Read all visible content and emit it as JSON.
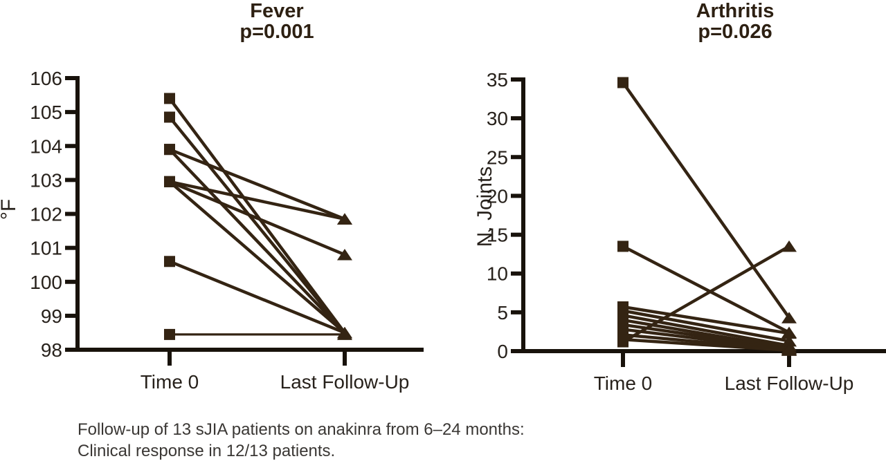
{
  "figure": {
    "caption_line1": "Follow-up of 13 sJIA patients on anakinra from 6–24 months:",
    "caption_line2": "Clinical response in 12/13 patients."
  },
  "colors": {
    "data": "#342413",
    "axis": "#18120b",
    "tick_label": "#27211b",
    "title": "#2d2012",
    "caption": "#3a3734"
  },
  "chart_data": [
    {
      "type": "line",
      "title": "Fever",
      "subtitle": "p=0.001",
      "ylabel": "°F",
      "xlabel": "",
      "categories": [
        "Time 0",
        "Last Follow-Up"
      ],
      "ylim": [
        98,
        106
      ],
      "yticks": [
        106,
        105,
        104,
        103,
        102,
        101,
        100,
        99,
        98
      ],
      "grid": false,
      "legend": "none",
      "markers": {
        "time0": "filled-square",
        "followup": "filled-triangle-up"
      },
      "pairs": [
        {
          "time0": 105.4,
          "followup": 98.5
        },
        {
          "time0": 104.85,
          "followup": 98.5
        },
        {
          "time0": 103.9,
          "followup": 101.85
        },
        {
          "time0": 103.9,
          "followup": 98.5
        },
        {
          "time0": 102.95,
          "followup": 101.85
        },
        {
          "time0": 102.95,
          "followup": 100.8
        },
        {
          "time0": 102.95,
          "followup": 98.5
        },
        {
          "time0": 100.6,
          "followup": 98.5
        },
        {
          "time0": 98.45,
          "followup": 98.45
        }
      ]
    },
    {
      "type": "line",
      "title": "Arthritis",
      "subtitle": "p=0.026",
      "ylabel": "N. Joints",
      "xlabel": "",
      "categories": [
        "Time 0",
        "Last Follow-Up"
      ],
      "ylim": [
        0,
        35
      ],
      "yticks": [
        35,
        30,
        25,
        20,
        15,
        10,
        5,
        0
      ],
      "grid": false,
      "legend": "none",
      "markers": {
        "time0": "filled-square",
        "followup": "filled-triangle-up"
      },
      "pairs": [
        {
          "time0": 34.6,
          "followup": 4.3
        },
        {
          "time0": 13.5,
          "followup": 2.4
        },
        {
          "time0": 1.2,
          "followup": 13.5
        },
        {
          "time0": 5.7,
          "followup": 2.3
        },
        {
          "time0": 5.2,
          "followup": 1.3
        },
        {
          "time0": 4.6,
          "followup": 0.7
        },
        {
          "time0": 4.0,
          "followup": 0.4
        },
        {
          "time0": 3.4,
          "followup": 0.3
        },
        {
          "time0": 2.8,
          "followup": 0.2
        },
        {
          "time0": 2.1,
          "followup": 0.15
        },
        {
          "time0": 1.5,
          "followup": 0.1
        }
      ]
    }
  ]
}
